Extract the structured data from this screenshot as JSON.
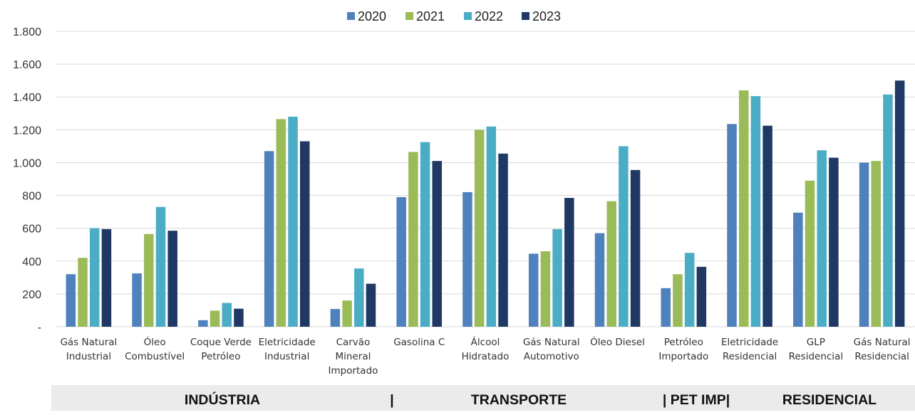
{
  "chart_data": {
    "type": "bar",
    "categories": [
      [
        "Gás Natural",
        "Industrial"
      ],
      [
        "Óleo",
        "Combustível"
      ],
      [
        "Coque Verde",
        "Petróleo"
      ],
      [
        "Eletricidade",
        "Industrial"
      ],
      [
        "Carvão",
        "Mineral",
        "Importado"
      ],
      [
        "Gasolina C"
      ],
      [
        "Álcool",
        "Hidratado"
      ],
      [
        "Gás Natural",
        "Automotivo"
      ],
      [
        "Óleo Diesel"
      ],
      [
        "Petróleo",
        "Importado"
      ],
      [
        "Eletricidade",
        "Residencial"
      ],
      [
        "GLP",
        "Residencial"
      ],
      [
        "Gás Natural",
        "Residencial"
      ]
    ],
    "series": [
      {
        "name": "2020",
        "color": "#4f81bd",
        "values": [
          320,
          325,
          40,
          1070,
          108,
          790,
          820,
          445,
          570,
          235,
          1235,
          695,
          1000
        ]
      },
      {
        "name": "2021",
        "color": "#9bbb59",
        "values": [
          420,
          565,
          98,
          1265,
          160,
          1065,
          1200,
          460,
          765,
          320,
          1440,
          890,
          1010
        ]
      },
      {
        "name": "2022",
        "color": "#4bacc6",
        "values": [
          600,
          730,
          145,
          1280,
          355,
          1125,
          1220,
          595,
          1100,
          450,
          1405,
          1075,
          1415
        ]
      },
      {
        "name": "2023",
        "color": "#1f3864",
        "values": [
          595,
          585,
          110,
          1130,
          262,
          1010,
          1055,
          785,
          955,
          365,
          1225,
          1030,
          1500
        ]
      }
    ],
    "yticks": [
      "-",
      "200",
      "400",
      "600",
      "800",
      "1.000",
      "1.200",
      "1.400",
      "1.600",
      "1.800"
    ],
    "ylim": [
      0,
      1800
    ],
    "grid": true,
    "legend": "top-center",
    "sectors": [
      "INDÚSTRIA",
      "|",
      "TRANSPORTE",
      "| PET IMP|",
      "RESIDENCIAL"
    ]
  }
}
